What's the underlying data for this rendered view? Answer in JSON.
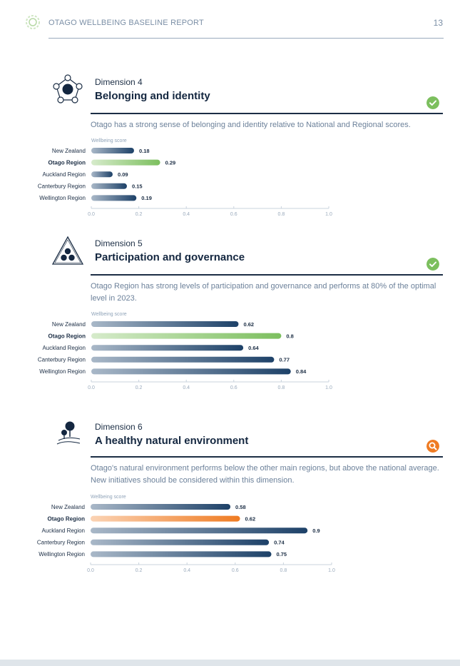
{
  "header": {
    "report_title": "OTAGO WELLBEING BASELINE REPORT",
    "page_number": "13"
  },
  "colors": {
    "navy": "#1d4168",
    "green": "#7cbf5e",
    "orange": "#ef7b22",
    "muted_text": "#6c819a"
  },
  "sections": [
    {
      "label": "Dimension 4",
      "title": "Belonging and identity",
      "icon": "belonging-network-icon",
      "status": "check-circle-icon",
      "status_color": "#7cbf5e",
      "description": "Otago has a strong sense of belonging and identity relative to National and Regional scores."
    },
    {
      "label": "Dimension 5",
      "title": "Participation and governance",
      "icon": "participation-triangle-icon",
      "status": "check-circle-icon",
      "status_color": "#7cbf5e",
      "description": "Otago Region has strong levels of participation and governance and performs at 80% of the optimal level in 2023."
    },
    {
      "label": "Dimension 6",
      "title": "A healthy natural environment",
      "icon": "tree-landscape-icon",
      "status": "magnifier-circle-icon",
      "status_color": "#ef7b22",
      "description": "Otago's natural environment performs below the other main regions, but above the national average. New initiatives should be considered within this dimension."
    }
  ],
  "chart_data": [
    {
      "type": "bar",
      "orientation": "horizontal",
      "axis_title": "Wellbeing score",
      "categories": [
        "New Zealand",
        "Otago Region",
        "Auckland Region",
        "Canterbury Region",
        "Wellington Region"
      ],
      "values": [
        0.18,
        0.29,
        0.09,
        0.15,
        0.19
      ],
      "value_labels": [
        "0.18",
        "0.29",
        "0.09",
        "0.15",
        "0.19"
      ],
      "highlight": "Otago Region",
      "highlight_color": "#7cbf5e",
      "xlim": [
        0,
        1.0
      ],
      "ticks": [
        "0.0",
        "0.2",
        "0.4",
        "0.6",
        "0.8",
        "1.0"
      ]
    },
    {
      "type": "bar",
      "orientation": "horizontal",
      "axis_title": "Wellbeing score",
      "categories": [
        "New Zealand",
        "Otago Region",
        "Auckland Region",
        "Canterbury Region",
        "Wellington Region"
      ],
      "values": [
        0.62,
        0.8,
        0.64,
        0.77,
        0.84
      ],
      "value_labels": [
        "0.62",
        "0.8",
        "0.64",
        "0.77",
        "0.84"
      ],
      "highlight": "Otago Region",
      "highlight_color": "#7cbf5e",
      "xlim": [
        0,
        1.0
      ],
      "ticks": [
        "0.0",
        "0.2",
        "0.4",
        "0.6",
        "0.8",
        "1.0"
      ]
    },
    {
      "type": "bar",
      "orientation": "horizontal",
      "axis_title": "Wellbeing score",
      "categories": [
        "New Zealand",
        "Otago Region",
        "Auckland Region",
        "Canterbury Region",
        "Wellington Region"
      ],
      "values": [
        0.58,
        0.62,
        0.9,
        0.74,
        0.75
      ],
      "value_labels": [
        "0.58",
        "0.62",
        "0.9",
        "0.74",
        "0.75"
      ],
      "highlight": "Otago Region",
      "highlight_color": "#ef7b22",
      "xlim": [
        0,
        1.0
      ],
      "ticks": [
        "0.0",
        "0.2",
        "0.4",
        "0.6",
        "0.8",
        "1.0"
      ]
    }
  ]
}
